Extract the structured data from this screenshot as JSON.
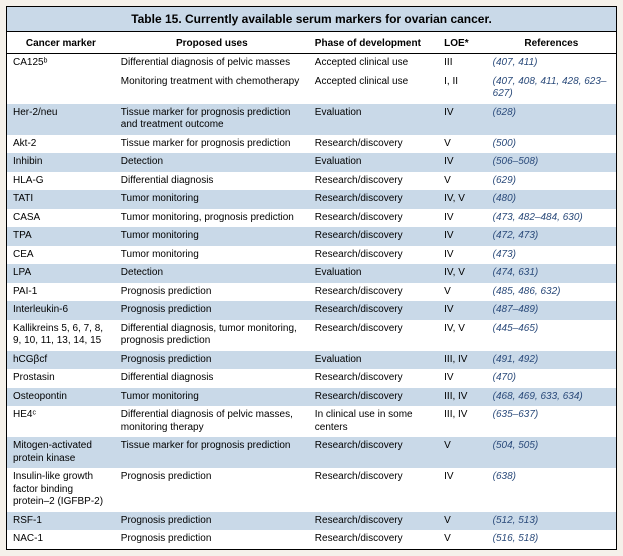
{
  "title": "Table 15. Currently available serum markers for ovarian cancer.",
  "colors": {
    "band": "#c9d9e8",
    "bg": "#ffffff",
    "page_bg": "#f5f1ea",
    "ref_text": "#2a4a7a",
    "border": "#000000"
  },
  "type": "table",
  "columns": [
    {
      "key": "marker",
      "label": "Cancer marker",
      "align": "left"
    },
    {
      "key": "uses",
      "label": "Proposed uses",
      "align": "left"
    },
    {
      "key": "phase",
      "label": "Phase of development",
      "align": "left"
    },
    {
      "key": "loe",
      "label": "LOE*",
      "align": "left"
    },
    {
      "key": "refs",
      "label": "References",
      "align": "center"
    }
  ],
  "rows": [
    {
      "marker": "CA125ᵇ",
      "uses": "Differential diagnosis of pelvic masses",
      "phase": "Accepted clinical use",
      "loe": "III",
      "refs": "(407, 411)",
      "band": false
    },
    {
      "marker": "",
      "uses": "Monitoring treatment with chemotherapy",
      "phase": "Accepted clinical use",
      "loe": "I, II",
      "refs": "(407, 408, 411, 428, 623–627)",
      "band": false
    },
    {
      "marker": "Her-2/neu",
      "uses": "Tissue marker for prognosis prediction and treatment outcome",
      "phase": "Evaluation",
      "loe": "IV",
      "refs": "(628)",
      "band": true
    },
    {
      "marker": "Akt-2",
      "uses": "Tissue marker for prognosis prediction",
      "phase": "Research/discovery",
      "loe": "V",
      "refs": "(500)",
      "band": false
    },
    {
      "marker": "Inhibin",
      "uses": "Detection",
      "phase": "Evaluation",
      "loe": "IV",
      "refs": "(506–508)",
      "band": true
    },
    {
      "marker": "HLA-G",
      "uses": "Differential diagnosis",
      "phase": "Research/discovery",
      "loe": "V",
      "refs": "(629)",
      "band": false
    },
    {
      "marker": "TATI",
      "uses": "Tumor monitoring",
      "phase": "Research/discovery",
      "loe": "IV, V",
      "refs": "(480)",
      "band": true
    },
    {
      "marker": "CASA",
      "uses": "Tumor monitoring, prognosis prediction",
      "phase": "Research/discovery",
      "loe": "IV",
      "refs": "(473, 482–484, 630)",
      "band": false
    },
    {
      "marker": "TPA",
      "uses": "Tumor monitoring",
      "phase": "Research/discovery",
      "loe": "IV",
      "refs": "(472, 473)",
      "band": true
    },
    {
      "marker": "CEA",
      "uses": "Tumor monitoring",
      "phase": "Research/discovery",
      "loe": "IV",
      "refs": "(473)",
      "band": false
    },
    {
      "marker": "LPA",
      "uses": "Detection",
      "phase": "Evaluation",
      "loe": "IV, V",
      "refs": "(474, 631)",
      "band": true
    },
    {
      "marker": "PAI-1",
      "uses": "Prognosis prediction",
      "phase": "Research/discovery",
      "loe": "V",
      "refs": "(485, 486, 632)",
      "band": false
    },
    {
      "marker": "Interleukin-6",
      "uses": "Prognosis prediction",
      "phase": "Research/discovery",
      "loe": "IV",
      "refs": "(487–489)",
      "band": true
    },
    {
      "marker": "Kallikreins 5, 6, 7, 8, 9, 10, 11, 13, 14, 15",
      "uses": "Differential diagnosis, tumor monitoring, prognosis prediction",
      "phase": "Research/discovery",
      "loe": "IV, V",
      "refs": "(445–465)",
      "band": false
    },
    {
      "marker": "hCGβcf",
      "uses": "Prognosis prediction",
      "phase": "Evaluation",
      "loe": "III, IV",
      "refs": "(491, 492)",
      "band": true
    },
    {
      "marker": "Prostasin",
      "uses": "Differential diagnosis",
      "phase": "Research/discovery",
      "loe": "IV",
      "refs": "(470)",
      "band": false
    },
    {
      "marker": "Osteopontin",
      "uses": "Tumor monitoring",
      "phase": "Research/discovery",
      "loe": "III, IV",
      "refs": "(468, 469, 633, 634)",
      "band": true
    },
    {
      "marker": "HE4ᶜ",
      "uses": "Differential diagnosis of pelvic masses, monitoring therapy",
      "phase": "In clinical use in some centers",
      "loe": "III, IV",
      "refs": "(635–637)",
      "band": false
    },
    {
      "marker": "Mitogen-activated protein kinase",
      "uses": "Tissue marker for prognosis prediction",
      "phase": "Research/discovery",
      "loe": "V",
      "refs": "(504, 505)",
      "band": true
    },
    {
      "marker": "Insulin-like growth factor binding protein–2 (IGFBP-2)",
      "uses": "Prognosis prediction",
      "phase": "Research/discovery",
      "loe": "IV",
      "refs": "(638)",
      "band": false
    },
    {
      "marker": "RSF-1",
      "uses": "Prognosis prediction",
      "phase": "Research/discovery",
      "loe": "V",
      "refs": "(512, 513)",
      "band": true
    },
    {
      "marker": "NAC-1",
      "uses": "Prognosis prediction",
      "phase": "Research/discovery",
      "loe": "V",
      "refs": "(516, 518)",
      "band": false
    }
  ]
}
